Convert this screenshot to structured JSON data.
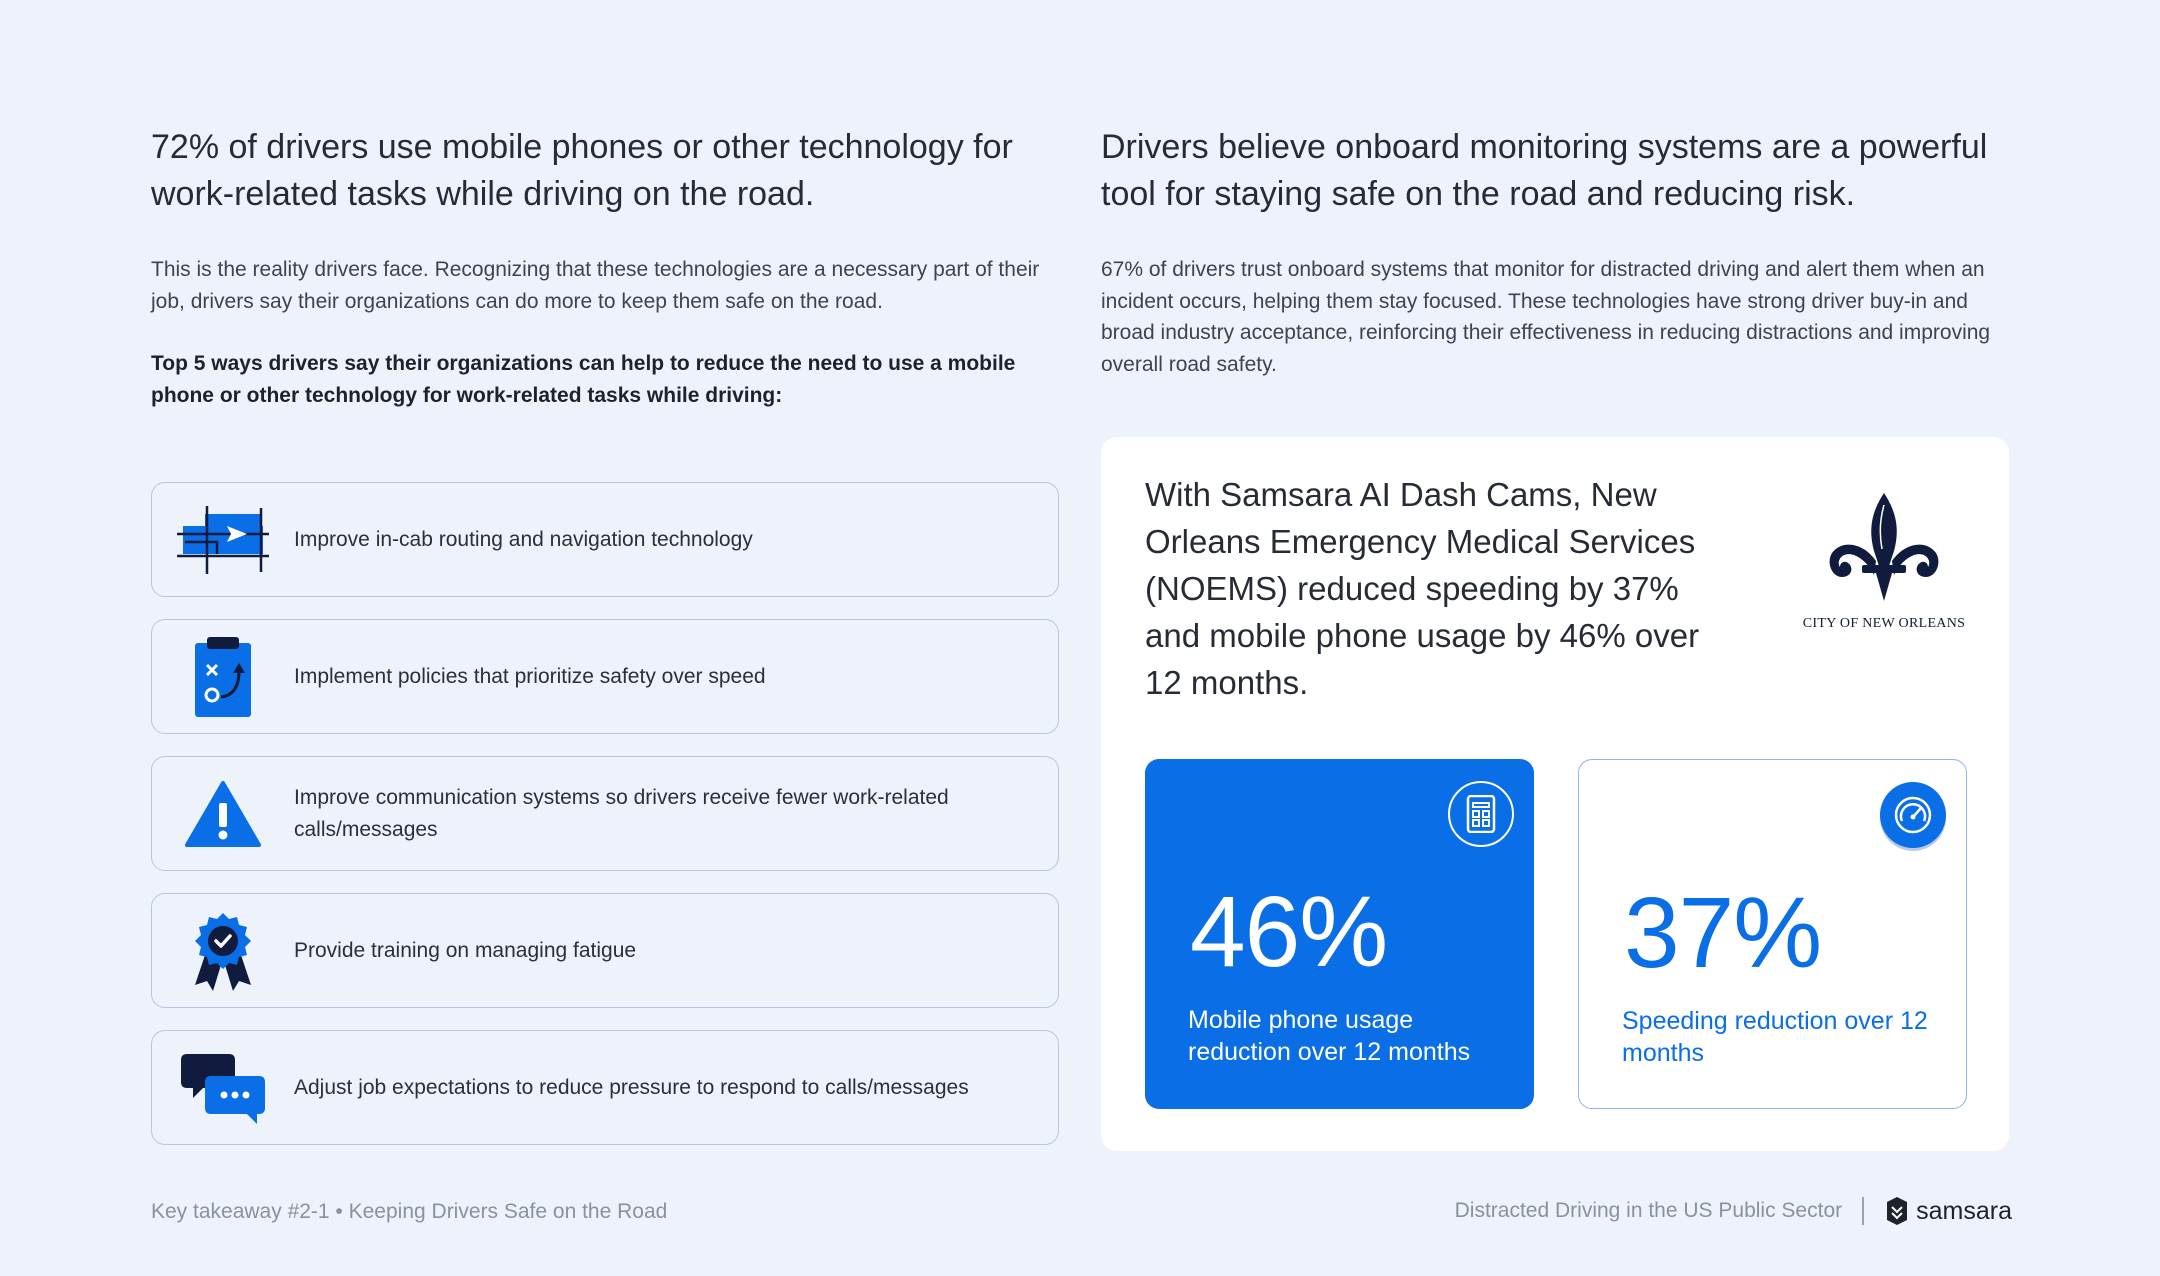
{
  "left": {
    "headline": "72% of drivers use mobile phones or other technology for work-related tasks while driving on the road.",
    "body": "This is the reality drivers face. Recognizing that these technologies are a necessary part of their job, drivers say their organizations can do more to keep them safe on the road.",
    "list_intro": "Top 5 ways drivers say their organizations can help to reduce the need to use a mobile phone or other technology for work-related tasks while driving:",
    "items": [
      {
        "label": "Improve in-cab routing and navigation technology",
        "icon": "map-navigation-icon"
      },
      {
        "label": "Implement policies that prioritize safety over speed",
        "icon": "clipboard-strategy-icon"
      },
      {
        "label": "Improve communication systems so drivers receive fewer work-related calls/messages",
        "icon": "warning-icon"
      },
      {
        "label": "Provide training on managing fatigue",
        "icon": "award-badge-icon"
      },
      {
        "label": "Adjust job expectations to reduce pressure to respond to calls/messages",
        "icon": "chat-bubbles-icon"
      }
    ]
  },
  "right": {
    "headline": "Drivers believe onboard monitoring systems are a powerful tool for staying safe on the road and reducing risk.",
    "body": "67% of drivers trust onboard systems that monitor for distracted driving and alert them when an incident occurs, helping them stay focused. These technologies have strong driver buy-in and broad industry acceptance, reinforcing their effectiveness in reducing distractions and improving overall road safety."
  },
  "case_study": {
    "text": "With Samsara AI Dash Cams, New Orleans Emergency Medical Services (NOEMS) reduced speeding by 37% and mobile phone usage by 46% over 12 months.",
    "logo_caption": "CITY OF NEW ORLEANS",
    "stats": [
      {
        "value": "46%",
        "caption": "Mobile phone usage reduction over 12 months",
        "icon": "mobile-phone-icon"
      },
      {
        "value": "37%",
        "caption": "Speeding reduction over 12 months",
        "icon": "speedometer-icon"
      }
    ]
  },
  "footer": {
    "left": "Key takeaway #2-1 • Keeping Drivers Safe on the Road",
    "publication": "Distracted Driving in the US Public Sector",
    "brand": "samsara"
  },
  "colors": {
    "background": "#eef3fb",
    "accent_blue": "#0a6ee6",
    "navy": "#101b3d"
  }
}
